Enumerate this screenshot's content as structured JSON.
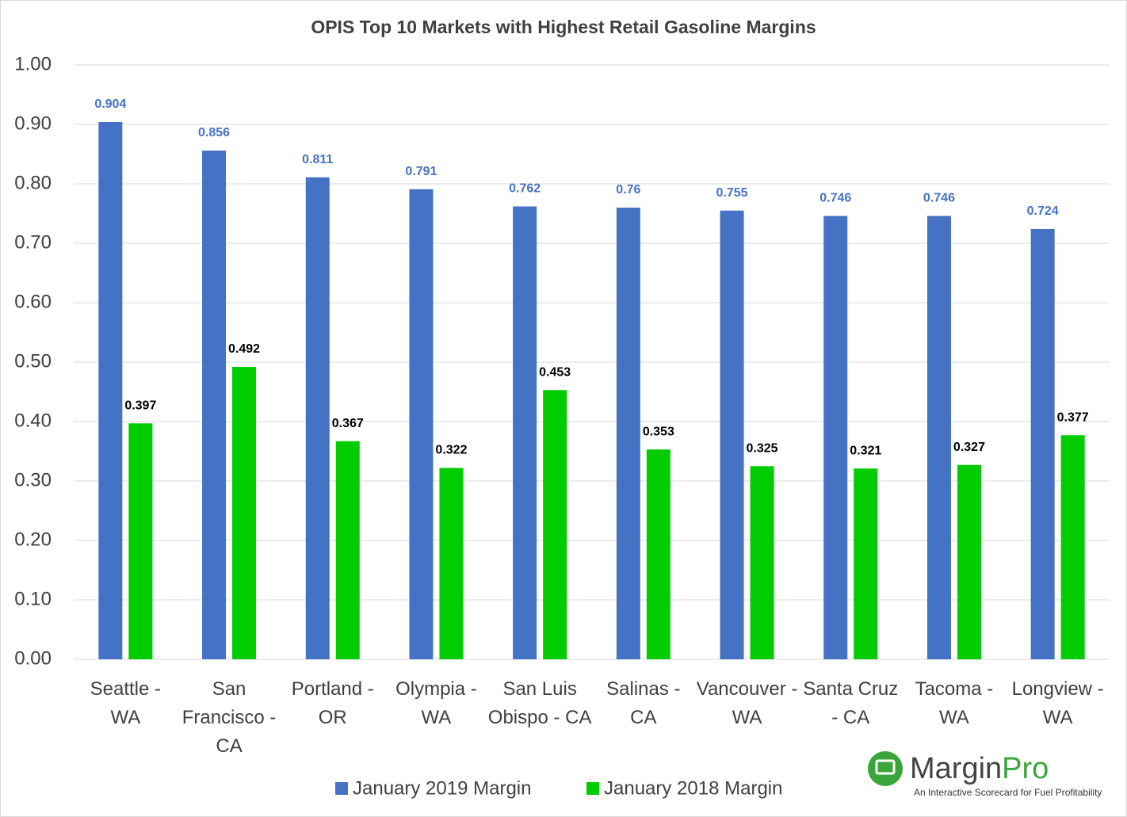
{
  "chart_data": {
    "type": "bar",
    "title": "OPIS Top 10 Markets with Highest Retail Gasoline Margins",
    "categories": [
      "Seattle - WA",
      "San Francisco - CA",
      "Portland - OR",
      "Olympia - WA",
      "San Luis Obispo - CA",
      "Salinas - CA",
      "Vancouver - WA",
      "Santa Cruz - CA",
      "Tacoma - WA",
      "Longview - WA"
    ],
    "series": [
      {
        "name": "January 2019 Margin",
        "color": "#4472c4",
        "label_color": "#4472c4",
        "values": [
          0.904,
          0.856,
          0.811,
          0.791,
          0.762,
          0.76,
          0.755,
          0.746,
          0.746,
          0.724
        ]
      },
      {
        "name": "January 2018 Margin",
        "color": "#00cc00",
        "label_color": "#000000",
        "values": [
          0.397,
          0.492,
          0.367,
          0.322,
          0.453,
          0.353,
          0.325,
          0.321,
          0.327,
          0.377
        ]
      }
    ],
    "ylim": [
      0,
      1
    ],
    "yticks": [
      {
        "value": 0,
        "label": "0.00"
      },
      {
        "value": 0.1,
        "label": "0.10"
      },
      {
        "value": 0.2,
        "label": "0.20"
      },
      {
        "value": 0.3,
        "label": "0.30"
      },
      {
        "value": 0.4,
        "label": "0.40"
      },
      {
        "value": 0.5,
        "label": "0.50"
      },
      {
        "value": 0.6,
        "label": "0.60"
      },
      {
        "value": 0.7,
        "label": "0.70"
      },
      {
        "value": 0.8,
        "label": "0.80"
      },
      {
        "value": 0.9,
        "label": "0.90"
      },
      {
        "value": 1,
        "label": "1.00"
      }
    ],
    "grid": true,
    "legend": "bottom"
  },
  "logo": {
    "name_part1": "Margin",
    "name_part2": "Pro",
    "tagline": "An Interactive Scorecard for Fuel Profitability"
  }
}
